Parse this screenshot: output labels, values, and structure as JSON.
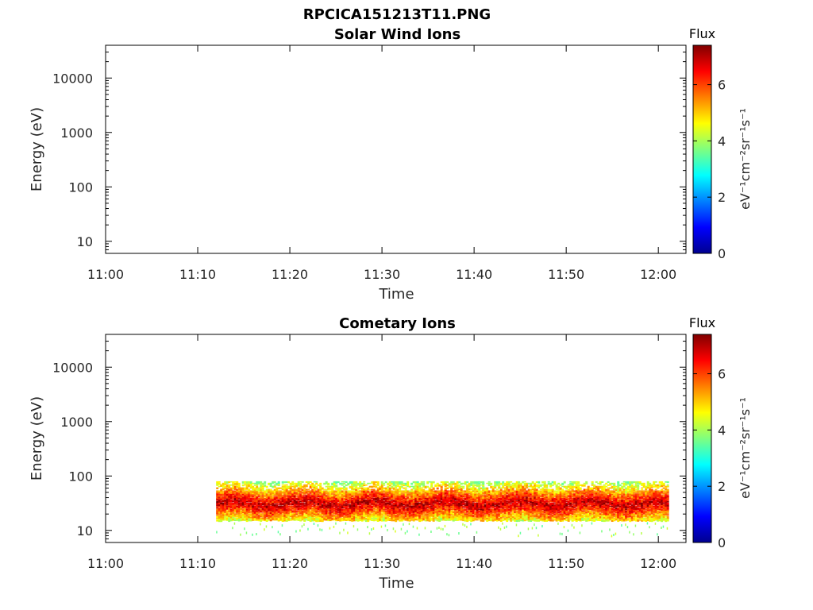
{
  "figure": {
    "title": "RPCICA151213T11.PNG"
  },
  "chart_data": [
    {
      "type": "heatmap",
      "title": "Solar Wind Ions",
      "xlabel": "Time",
      "ylabel": "Energy (eV)",
      "x_ticks": [
        "11:00",
        "11:10",
        "11:20",
        "11:30",
        "11:40",
        "11:50",
        "12:00"
      ],
      "x_range": [
        "11:00",
        "12:03"
      ],
      "y_scale": "log",
      "y_ticks": [
        10,
        100,
        1000,
        10000
      ],
      "y_tick_labels": [
        "10",
        "100",
        "1000",
        "10000"
      ],
      "y_range": [
        6,
        40000
      ],
      "colorbar": {
        "label": "Flux",
        "units": "eV⁻¹cm⁻²sr⁻¹s⁻¹",
        "range": [
          0,
          7.4
        ],
        "ticks": [
          0,
          2,
          4,
          6
        ],
        "colormap": "jet"
      },
      "data": []
    },
    {
      "type": "heatmap",
      "title": "Cometary Ions",
      "xlabel": "Time",
      "ylabel": "Energy (eV)",
      "x_ticks": [
        "11:00",
        "11:10",
        "11:20",
        "11:30",
        "11:40",
        "11:50",
        "12:00"
      ],
      "x_range": [
        "11:00",
        "12:03"
      ],
      "y_scale": "log",
      "y_ticks": [
        10,
        100,
        1000,
        10000
      ],
      "y_tick_labels": [
        "10",
        "100",
        "1000",
        "10000"
      ],
      "y_range": [
        6,
        40000
      ],
      "colorbar": {
        "label": "Flux",
        "units": "eV⁻¹cm⁻²sr⁻¹s⁻¹",
        "range": [
          0,
          7.4
        ],
        "ticks": [
          0,
          2,
          4,
          6
        ],
        "colormap": "jet"
      },
      "data": {
        "time_start": "11:12",
        "time_end": "12:01",
        "upper_energy": 80,
        "lower_energy": 15,
        "peak_energy": 30,
        "peak_flux": 7,
        "edge_flux": 4.5
      }
    }
  ]
}
